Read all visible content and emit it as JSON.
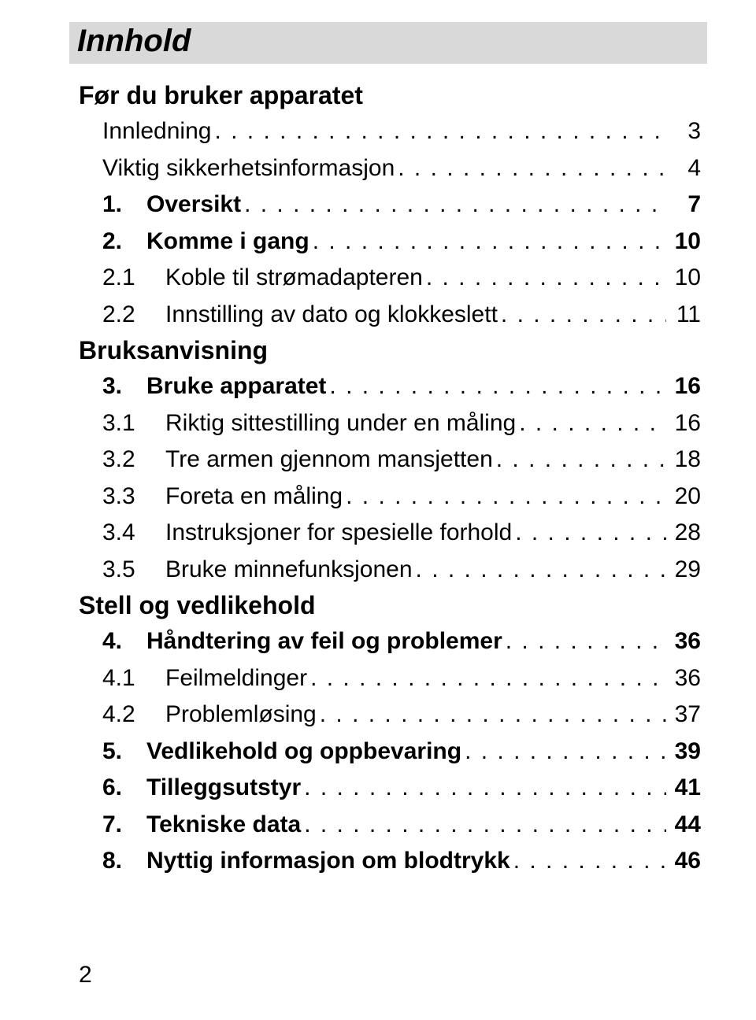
{
  "title": "Innhold",
  "sections": [
    {
      "heading": "Før du bruker apparatet",
      "entries": [
        {
          "type": "top",
          "bold": false,
          "num": "",
          "label": "Innledning",
          "page": "3",
          "indentNum": false
        },
        {
          "type": "top",
          "bold": false,
          "num": "",
          "label": "Viktig sikkerhetsinformasjon",
          "page": "4",
          "indentNum": false
        },
        {
          "type": "top",
          "bold": true,
          "num": "1.",
          "label": "Oversikt",
          "page": "7",
          "indentNum": false
        },
        {
          "type": "top",
          "bold": true,
          "num": "2.",
          "label": "Komme i gang",
          "page": "10",
          "indentNum": false
        },
        {
          "type": "sub",
          "bold": false,
          "num": "2.1",
          "label": "Koble til strømadapteren",
          "page": "10",
          "indentNum": true
        },
        {
          "type": "sub",
          "bold": false,
          "num": "2.2",
          "label": "Innstilling av dato og klokkeslett",
          "page": "11",
          "indentNum": true
        }
      ]
    },
    {
      "heading": "Bruksanvisning",
      "entries": [
        {
          "type": "top",
          "bold": true,
          "num": "3.",
          "label": "Bruke apparatet",
          "page": "16",
          "indentNum": false
        },
        {
          "type": "sub",
          "bold": false,
          "num": "3.1",
          "label": "Riktig sittestilling under en måling",
          "page": "16",
          "indentNum": true
        },
        {
          "type": "sub",
          "bold": false,
          "num": "3.2",
          "label": "Tre armen gjennom mansjetten",
          "page": "18",
          "indentNum": true
        },
        {
          "type": "sub",
          "bold": false,
          "num": "3.3",
          "label": "Foreta en måling",
          "page": "20",
          "indentNum": true
        },
        {
          "type": "sub",
          "bold": false,
          "num": "3.4",
          "label": "Instruksjoner for spesielle forhold",
          "page": "28",
          "indentNum": true
        },
        {
          "type": "sub",
          "bold": false,
          "num": "3.5",
          "label": "Bruke minnefunksjonen",
          "page": "29",
          "indentNum": true
        }
      ]
    },
    {
      "heading": "Stell og vedlikehold",
      "entries": [
        {
          "type": "top",
          "bold": true,
          "num": "4.",
          "label": "Håndtering av feil og problemer",
          "page": "36",
          "indentNum": false
        },
        {
          "type": "sub",
          "bold": false,
          "num": "4.1",
          "label": "Feilmeldinger",
          "page": "36",
          "indentNum": true
        },
        {
          "type": "sub",
          "bold": false,
          "num": "4.2",
          "label": "Problemløsing",
          "page": "37",
          "indentNum": true
        },
        {
          "type": "top",
          "bold": true,
          "num": "5.",
          "label": "Vedlikehold og oppbevaring",
          "page": "39",
          "indentNum": false
        },
        {
          "type": "top",
          "bold": true,
          "num": "6.",
          "label": "Tilleggsutstyr",
          "page": "41",
          "indentNum": false
        },
        {
          "type": "top",
          "bold": true,
          "num": "7.",
          "label": "Tekniske data",
          "page": "44",
          "indentNum": false
        },
        {
          "type": "top",
          "bold": true,
          "num": "8.",
          "label": "Nyttig informasjon om blodtrykk",
          "page": "46",
          "indentNum": false
        }
      ]
    }
  ],
  "pageNumber": "2",
  "colors": {
    "titleBarBg": "#d9d9d9",
    "text": "#000000",
    "pageBg": "#ffffff"
  },
  "fonts": {
    "title_pt": 40,
    "heading_pt": 32,
    "body_pt": 30
  }
}
